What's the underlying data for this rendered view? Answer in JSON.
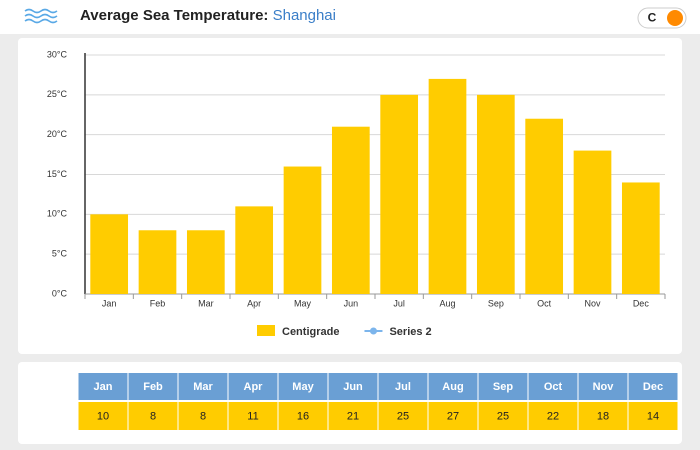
{
  "title": "Average Sea Temperature:",
  "location": "Shanghai",
  "unit_toggle": "C",
  "chart_data": {
    "type": "bar",
    "categories": [
      "Jan",
      "Feb",
      "Mar",
      "Apr",
      "May",
      "Jun",
      "Jul",
      "Aug",
      "Sep",
      "Oct",
      "Nov",
      "Dec"
    ],
    "series": [
      {
        "name": "Centigrade",
        "color": "#ffcc00",
        "values": [
          10,
          8,
          8,
          11,
          16,
          21,
          25,
          27,
          25,
          22,
          18,
          14
        ]
      },
      {
        "name": "Series 2",
        "color": "#7cb5ec",
        "values": [
          null,
          null,
          null,
          null,
          null,
          null,
          null,
          null,
          null,
          null,
          null,
          null
        ]
      }
    ],
    "ylim": [
      0,
      30
    ],
    "yticks": [
      {
        "value": 0,
        "label": "0°C"
      },
      {
        "value": 5,
        "label": "5°C"
      },
      {
        "value": 10,
        "label": "10°C"
      },
      {
        "value": 15,
        "label": "15°C"
      },
      {
        "value": 20,
        "label": "20°C"
      },
      {
        "value": 25,
        "label": "25°C"
      },
      {
        "value": 30,
        "label": "30°C"
      }
    ],
    "grid": true
  }
}
